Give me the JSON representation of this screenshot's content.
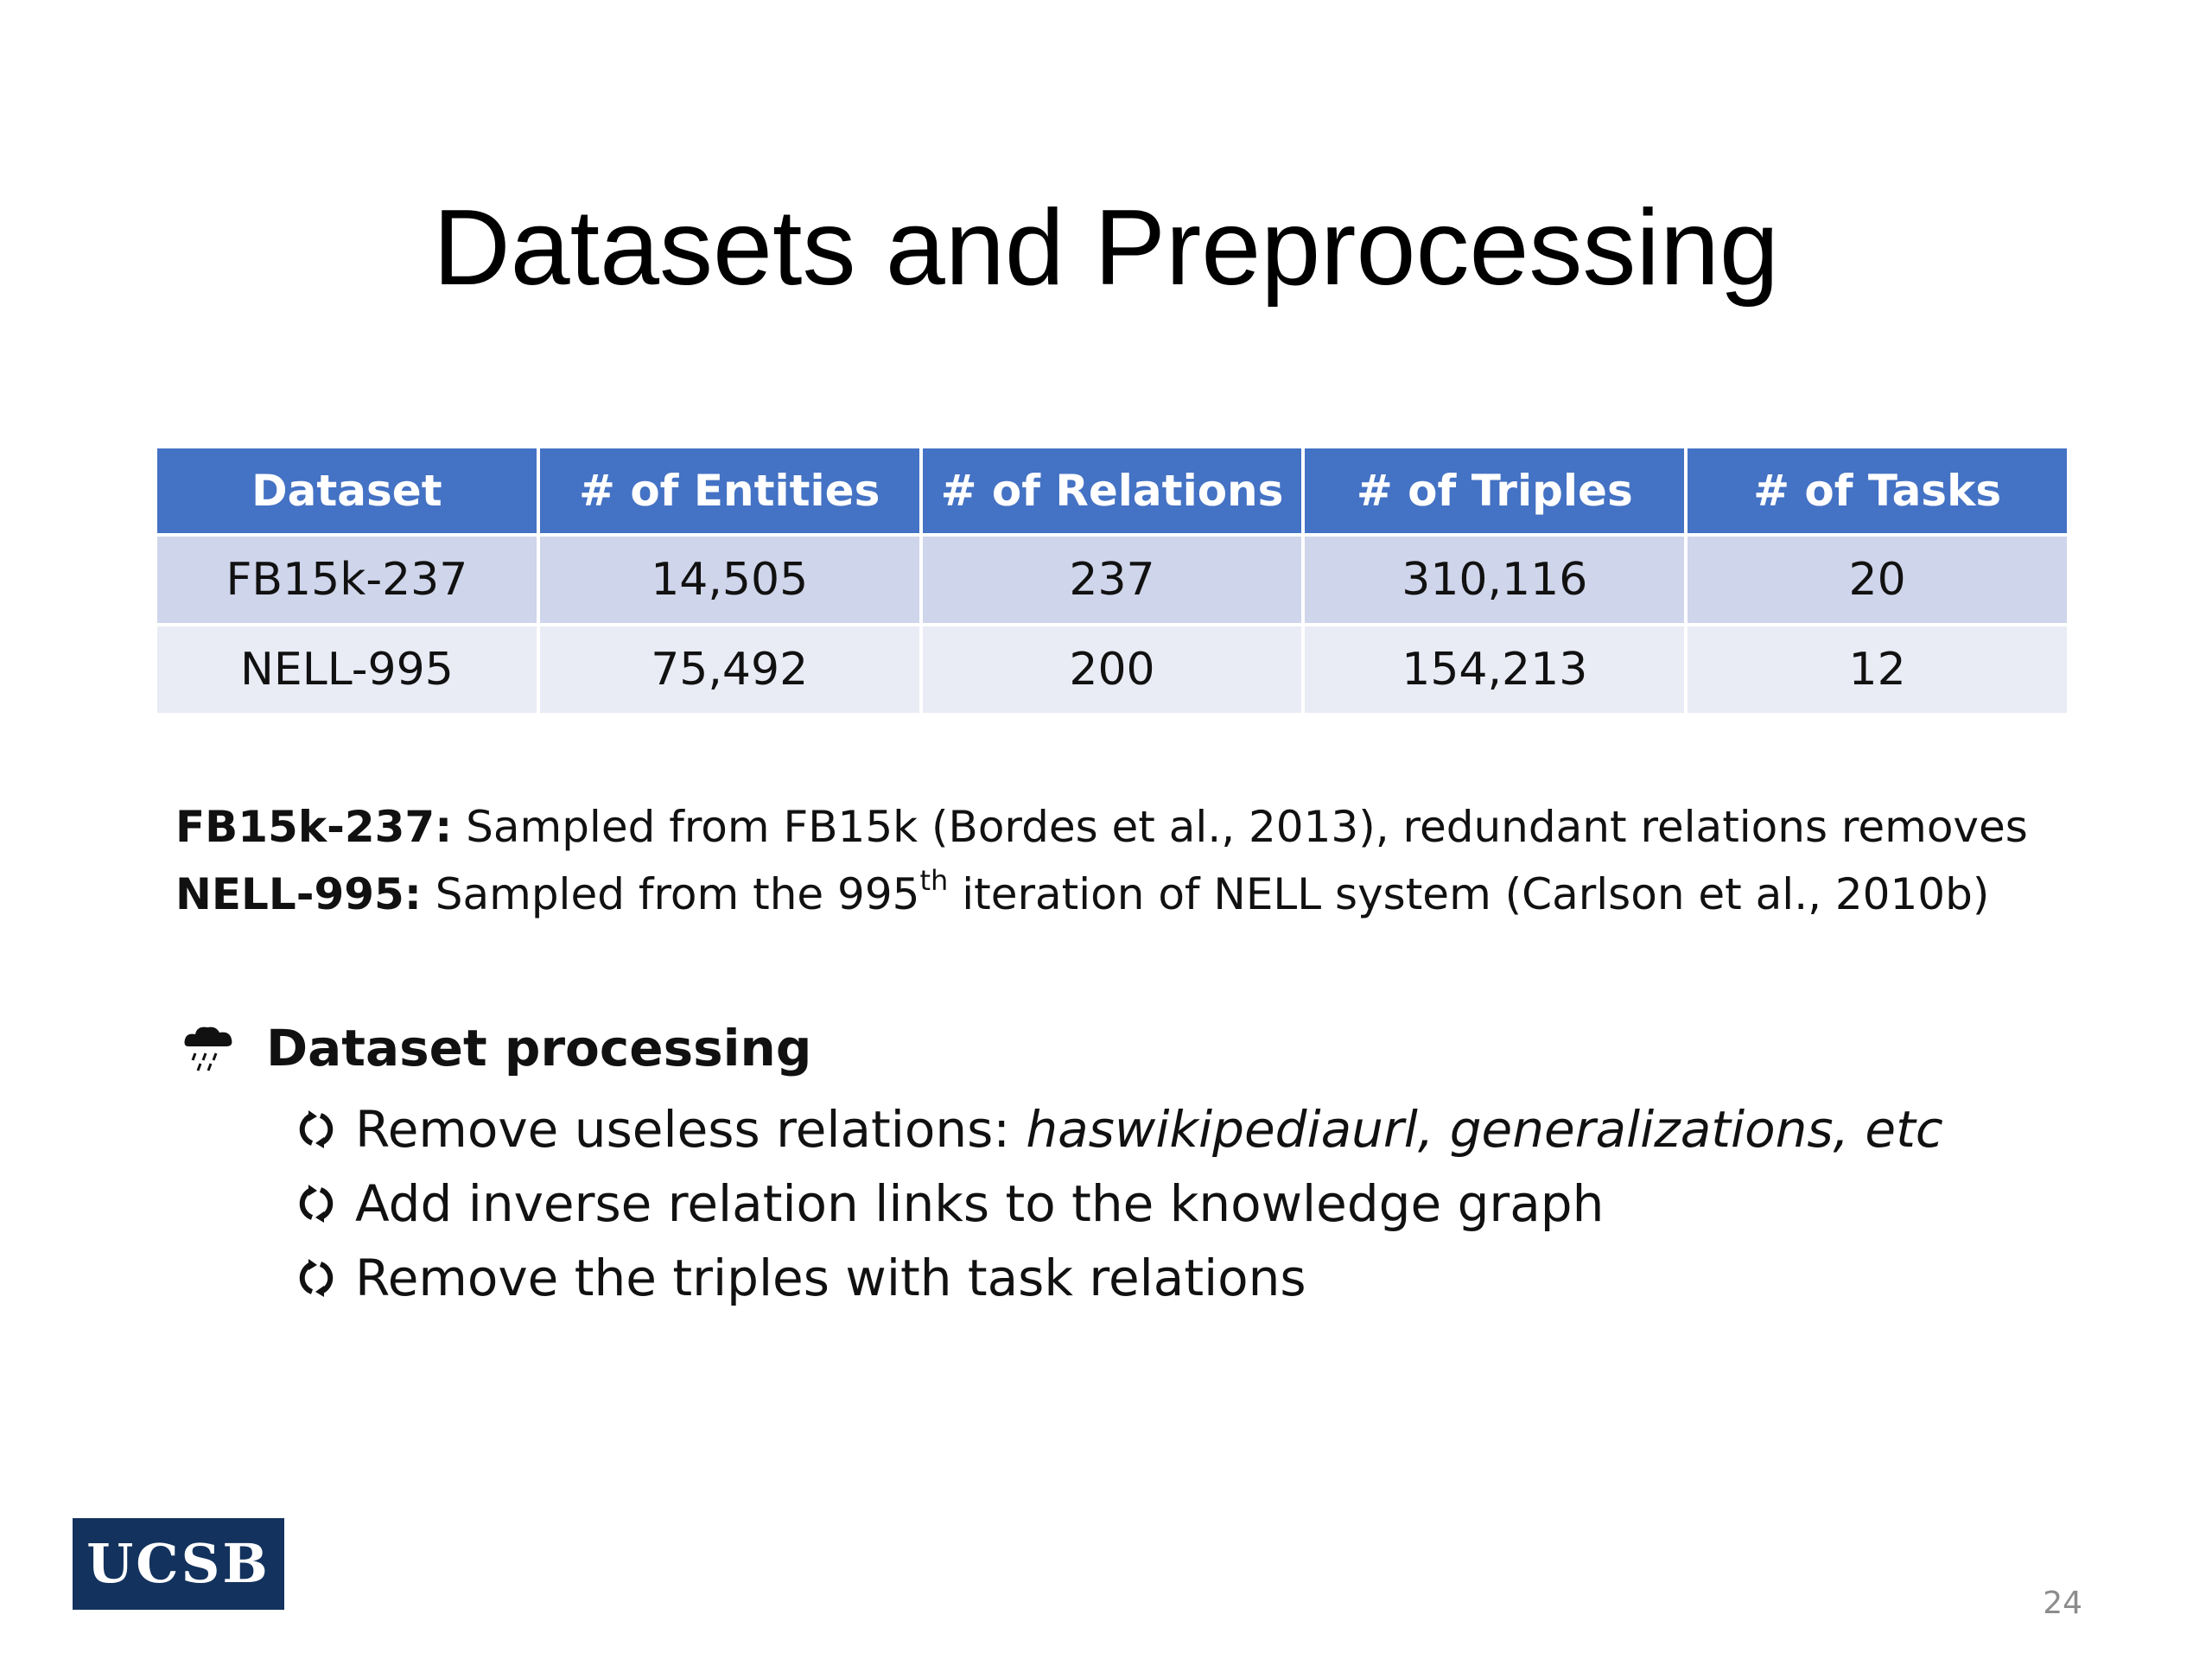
{
  "slide": {
    "title": "Datasets and Preprocessing",
    "page_number": "24",
    "logo_text": "UCSB"
  },
  "table": {
    "headers": [
      "Dataset",
      "# of Entities",
      "# of Relations",
      "# of Triples",
      "# of Tasks"
    ],
    "rows": [
      [
        "FB15k-237",
        "14,505",
        "237",
        "310,116",
        "20"
      ],
      [
        "NELL-995",
        "75,492",
        "200",
        "154,213",
        "12"
      ]
    ],
    "header_color": "#4472c4",
    "row_colors": [
      "#cfd5ea",
      "#e9ebf5"
    ]
  },
  "descriptions": {
    "fb": {
      "label": "FB15k-237:",
      "text": " Sampled from FB15k (Bordes et al., 2013), redundant relations removes"
    },
    "nell": {
      "label": "NELL-995:",
      "text_before": " Sampled from the 995",
      "superscript": "th",
      "text_after": " iteration of NELL system (Carlson et al., 2010b)"
    }
  },
  "processing": {
    "heading": "Dataset processing",
    "heading_icon": "cloud-rain-icon",
    "item_icon": "circular-arrows-icon",
    "items": [
      {
        "text": "Remove useless relations: ",
        "italic": "haswikipediaurl, generalizations, etc"
      },
      {
        "text": "Add inverse  relation links to the knowledge graph",
        "italic": ""
      },
      {
        "text": "Remove the triples with task relations",
        "italic": ""
      }
    ]
  }
}
